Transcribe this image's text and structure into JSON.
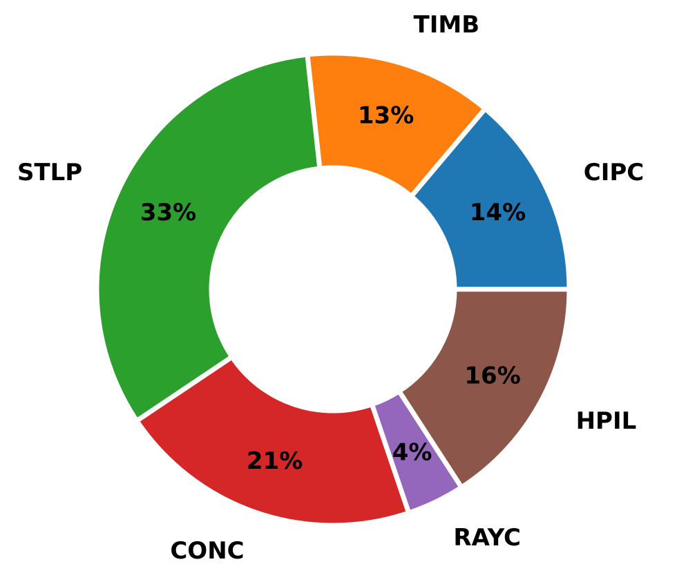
{
  "chart_data": {
    "type": "pie",
    "donut": true,
    "start_angle_deg": 0,
    "direction": "counterclockwise",
    "slices": [
      {
        "label": "CIPC",
        "pct_label": "14%",
        "value": 14,
        "color": "#1f77b4"
      },
      {
        "label": "TIMB",
        "pct_label": "13%",
        "value": 13,
        "color": "#ff7f0e"
      },
      {
        "label": "STLP",
        "pct_label": "33%",
        "value": 33,
        "color": "#2ca02c"
      },
      {
        "label": "CONC",
        "pct_label": "21%",
        "value": 21,
        "color": "#d62728"
      },
      {
        "label": "RAYC",
        "pct_label": "4%",
        "value": 4,
        "color": "#9467bd"
      },
      {
        "label": "HPIL",
        "pct_label": "16%",
        "value": 16,
        "color": "#8c564b"
      }
    ]
  }
}
